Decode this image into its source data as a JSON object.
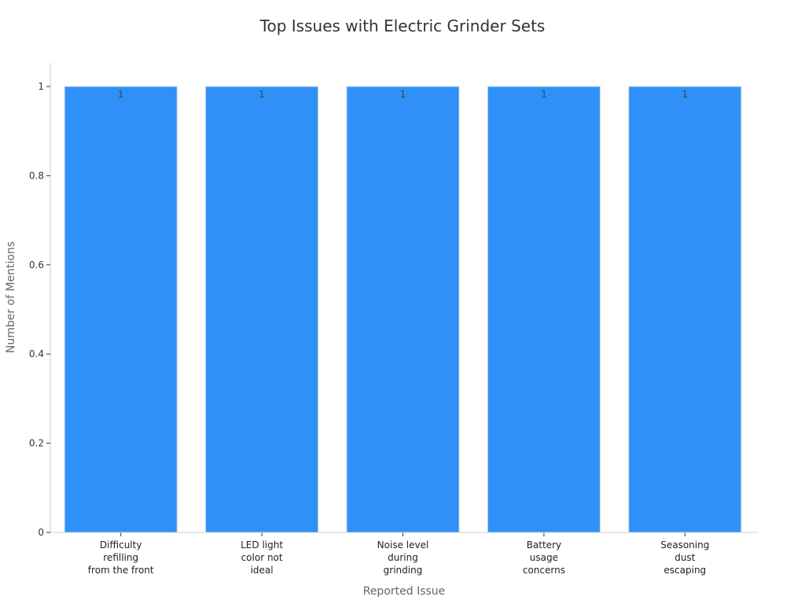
{
  "chart_data": {
    "type": "bar",
    "title": "Top Issues with Electric Grinder Sets",
    "xlabel": "Reported Issue",
    "ylabel": "Number of Mentions",
    "categories": [
      [
        "Difficulty",
        "refilling",
        "from the front"
      ],
      [
        "LED light",
        "color not",
        "ideal"
      ],
      [
        "Noise level",
        "during",
        "grinding"
      ],
      [
        "Battery",
        "usage",
        "concerns"
      ],
      [
        "Seasoning",
        "dust",
        "escaping"
      ]
    ],
    "values": [
      1,
      1,
      1,
      1,
      1
    ],
    "data_labels": [
      "1",
      "1",
      "1",
      "1",
      "1"
    ],
    "ylim": [
      0,
      1
    ],
    "yticks": [
      0,
      0.2,
      0.4,
      0.6,
      0.8,
      1
    ],
    "ytick_labels": [
      "0",
      "0.2",
      "0.4",
      "0.6",
      "0.8",
      "1"
    ],
    "grid": false,
    "colors": {
      "bar": "#2f91f7",
      "bar_edge": "#c8d6e5",
      "axis": "#cccccc"
    }
  }
}
